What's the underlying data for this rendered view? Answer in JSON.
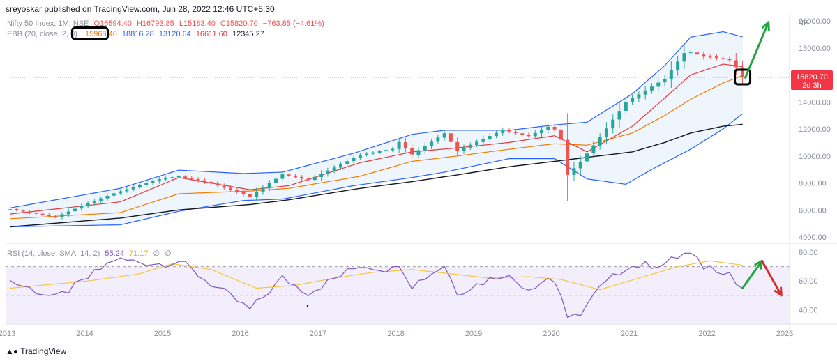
{
  "header": {
    "publisher": "sreyoskar published on TradingView.com, Jun 28, 2022 12:46 UTC+5:30"
  },
  "legend_main": {
    "symbol": "Nifty 50 Index, 1M, NSE",
    "open": "O16594.40",
    "high": "H16793.85",
    "low": "L15183.40",
    "close": "C15820.70",
    "change": "−763.85 (−4.61%)"
  },
  "legend_ebb": {
    "label": "EBB (20, close, 2, 0)",
    "v1": "15968.46",
    "v2": "18816.28",
    "v3": "13120.64",
    "v4": "16611.60",
    "v5": "12345.27"
  },
  "legend_rsi": {
    "label": "RSI (14, close, SMA, 14, 2)",
    "v1": "55.24",
    "v2": "71.17",
    "v3": "∅",
    "v4": "∅"
  },
  "price_label": {
    "value": "15820.70",
    "countdown": "2d 3h"
  },
  "axis": {
    "currency": "INR"
  },
  "colors": {
    "up": "#26a69a",
    "down": "#ef5350",
    "bb_band": "#2962ff",
    "bb_fill": "#eaf2fb",
    "ema_red": "#e53935",
    "ema_orange": "#f57c00",
    "ema_black": "#131722",
    "rsi_line": "#7e57c2",
    "rsi_ma": "#f5c542",
    "rsi_fill": "#f3eefb",
    "arrow_up": "#21a540",
    "arrow_down": "#d32f2f"
  },
  "footer": {
    "logo_text": "TradingView"
  },
  "chart_data": [
    {
      "type": "candlestick",
      "title": "Nifty 50 Index, 1M, NSE",
      "ylim": [
        4000,
        20000
      ],
      "yticks": [
        4000,
        6000,
        8000,
        10000,
        12000,
        14000,
        16000,
        18000,
        20000
      ],
      "xticks": [
        "2013",
        "2014",
        "2015",
        "2016",
        "2017",
        "2018",
        "2019",
        "2020",
        "2021",
        "2022",
        "2023"
      ],
      "last_price": 15820.7,
      "close_anchors": [
        [
          "2013-01",
          6050
        ],
        [
          "2013-08",
          5470
        ],
        [
          "2013-12",
          6300
        ],
        [
          "2014-05",
          7230
        ],
        [
          "2014-12",
          8280
        ],
        [
          "2015-03",
          8500
        ],
        [
          "2015-08",
          7970
        ],
        [
          "2016-02",
          6990
        ],
        [
          "2016-07",
          8640
        ],
        [
          "2016-11",
          8220
        ],
        [
          "2017-07",
          10080
        ],
        [
          "2017-12",
          10530
        ],
        [
          "2018-01",
          11030
        ],
        [
          "2018-03",
          10110
        ],
        [
          "2018-08",
          11680
        ],
        [
          "2018-10",
          10390
        ],
        [
          "2019-05",
          11920
        ],
        [
          "2019-09",
          11470
        ],
        [
          "2019-12",
          12170
        ],
        [
          "2020-01",
          11960
        ],
        [
          "2020-02",
          11200
        ],
        [
          "2020-03",
          8600
        ],
        [
          "2020-05",
          9580
        ],
        [
          "2020-08",
          11390
        ],
        [
          "2020-12",
          13980
        ],
        [
          "2021-06",
          15720
        ],
        [
          "2021-09",
          17620
        ],
        [
          "2021-10",
          17670
        ],
        [
          "2021-12",
          17350
        ],
        [
          "2022-01",
          17340
        ],
        [
          "2022-04",
          17100
        ],
        [
          "2022-05",
          16580
        ],
        [
          "2022-06",
          15820
        ]
      ],
      "bollinger": {
        "upper": [
          [
            "2013-01",
            6150
          ],
          [
            "2014-06",
            7600
          ],
          [
            "2015-03",
            8950
          ],
          [
            "2016-01",
            8700
          ],
          [
            "2016-07",
            8800
          ],
          [
            "2017-06",
            10200
          ],
          [
            "2018-03",
            11600
          ],
          [
            "2018-08",
            11900
          ],
          [
            "2019-06",
            11900
          ],
          [
            "2020-01",
            12300
          ],
          [
            "2020-06",
            12500
          ],
          [
            "2021-01",
            14600
          ],
          [
            "2021-06",
            16700
          ],
          [
            "2021-10",
            18800
          ],
          [
            "2022-03",
            19200
          ],
          [
            "2022-06",
            18816
          ]
        ],
        "lower": [
          [
            "2013-01",
            4750
          ],
          [
            "2014-06",
            4900
          ],
          [
            "2015-03",
            5900
          ],
          [
            "2016-01",
            6700
          ],
          [
            "2016-07",
            6800
          ],
          [
            "2017-06",
            7800
          ],
          [
            "2018-03",
            8400
          ],
          [
            "2018-08",
            8800
          ],
          [
            "2019-06",
            9800
          ],
          [
            "2020-01",
            9800
          ],
          [
            "2020-06",
            8300
          ],
          [
            "2020-12",
            7900
          ],
          [
            "2021-04",
            9000
          ],
          [
            "2021-10",
            10500
          ],
          [
            "2022-03",
            12000
          ],
          [
            "2022-06",
            13121
          ]
        ]
      },
      "ema_red": [
        [
          "2013-01",
          5700
        ],
        [
          "2014-06",
          6600
        ],
        [
          "2015-03",
          8400
        ],
        [
          "2016-02",
          7500
        ],
        [
          "2016-08",
          7800
        ],
        [
          "2017-07",
          9500
        ],
        [
          "2018-03",
          10300
        ],
        [
          "2018-10",
          10600
        ],
        [
          "2019-06",
          11000
        ],
        [
          "2020-01",
          11500
        ],
        [
          "2020-06",
          10300
        ],
        [
          "2021-01",
          12200
        ],
        [
          "2021-06",
          14300
        ],
        [
          "2021-10",
          16000
        ],
        [
          "2022-03",
          16800
        ],
        [
          "2022-06",
          16612
        ]
      ],
      "ema_orange": [
        [
          "2013-01",
          5350
        ],
        [
          "2014-06",
          5800
        ],
        [
          "2015-03",
          7200
        ],
        [
          "2016-02",
          7400
        ],
        [
          "2016-08",
          7600
        ],
        [
          "2017-07",
          8500
        ],
        [
          "2018-03",
          9600
        ],
        [
          "2018-10",
          10000
        ],
        [
          "2019-06",
          10500
        ],
        [
          "2020-01",
          10900
        ],
        [
          "2020-06",
          10800
        ],
        [
          "2021-01",
          11700
        ],
        [
          "2021-06",
          13000
        ],
        [
          "2021-10",
          14200
        ],
        [
          "2022-03",
          15400
        ],
        [
          "2022-06",
          15968
        ]
      ],
      "ema_black": [
        [
          "2013-01",
          4750
        ],
        [
          "2014-06",
          5400
        ],
        [
          "2015-03",
          6000
        ],
        [
          "2016-02",
          6400
        ],
        [
          "2016-08",
          6750
        ],
        [
          "2017-07",
          7600
        ],
        [
          "2018-03",
          8100
        ],
        [
          "2018-10",
          8600
        ],
        [
          "2019-06",
          9200
        ],
        [
          "2020-01",
          9600
        ],
        [
          "2020-06",
          9900
        ],
        [
          "2021-01",
          10300
        ],
        [
          "2021-06",
          11000
        ],
        [
          "2021-10",
          11700
        ],
        [
          "2022-03",
          12200
        ],
        [
          "2022-06",
          12345
        ]
      ],
      "annotations": [
        {
          "type": "box",
          "at": "2022-06",
          "value": 15820.7
        },
        {
          "type": "arrow",
          "from": [
            "2022-06",
            15800
          ],
          "to": [
            "2022-10",
            19900
          ],
          "color": "arrow_up"
        }
      ]
    },
    {
      "type": "line",
      "title": "RSI (14, close, SMA, 14, 2)",
      "ylim": [
        30,
        80
      ],
      "yticks": [
        40.0,
        60.0,
        80.0
      ],
      "bands": [
        30,
        50,
        70
      ],
      "rsi_anchors": [
        [
          "2013-01",
          60
        ],
        [
          "2013-08",
          48
        ],
        [
          "2013-12",
          59
        ],
        [
          "2014-05",
          75
        ],
        [
          "2014-12",
          72
        ],
        [
          "2015-03",
          74
        ],
        [
          "2015-08",
          58
        ],
        [
          "2016-02",
          40
        ],
        [
          "2016-07",
          62
        ],
        [
          "2016-11",
          52
        ],
        [
          "2017-07",
          71
        ],
        [
          "2017-12",
          68
        ],
        [
          "2018-01",
          73
        ],
        [
          "2018-03",
          57
        ],
        [
          "2018-08",
          71
        ],
        [
          "2018-10",
          52
        ],
        [
          "2019-05",
          65
        ],
        [
          "2019-09",
          55
        ],
        [
          "2019-12",
          62
        ],
        [
          "2020-01",
          60
        ],
        [
          "2020-02",
          50
        ],
        [
          "2020-03",
          32
        ],
        [
          "2020-05",
          38
        ],
        [
          "2020-08",
          55
        ],
        [
          "2020-12",
          70
        ],
        [
          "2021-06",
          72
        ],
        [
          "2021-09",
          79
        ],
        [
          "2021-10",
          78
        ],
        [
          "2021-12",
          70
        ],
        [
          "2022-01",
          70
        ],
        [
          "2022-04",
          66
        ],
        [
          "2022-05",
          58
        ],
        [
          "2022-06",
          55
        ]
      ],
      "rsi_ma_anchors": [
        [
          "2013-01",
          55
        ],
        [
          "2014-01",
          60
        ],
        [
          "2014-09",
          65
        ],
        [
          "2015-02",
          72
        ],
        [
          "2015-08",
          68
        ],
        [
          "2016-03",
          55
        ],
        [
          "2016-09",
          57
        ],
        [
          "2017-03",
          62
        ],
        [
          "2017-09",
          66
        ],
        [
          "2018-03",
          68
        ],
        [
          "2018-09",
          65
        ],
        [
          "2019-03",
          62
        ],
        [
          "2019-09",
          63
        ],
        [
          "2020-02",
          61
        ],
        [
          "2020-08",
          54
        ],
        [
          "2021-02",
          62
        ],
        [
          "2021-08",
          70
        ],
        [
          "2022-01",
          74
        ],
        [
          "2022-06",
          71
        ]
      ],
      "annotations": [
        {
          "type": "arrow",
          "from": [
            "2022-06",
            55
          ],
          "to": [
            "2022-09",
            74
          ],
          "color": "arrow_up"
        },
        {
          "type": "arrow",
          "from": [
            "2022-09",
            74
          ],
          "to": [
            "2022-12",
            50
          ],
          "color": "arrow_down"
        }
      ]
    }
  ]
}
